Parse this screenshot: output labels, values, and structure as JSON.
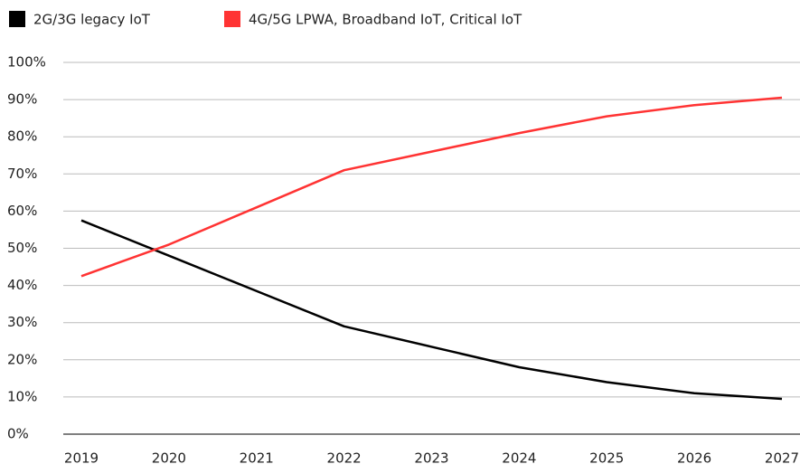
{
  "chart_data": {
    "type": "line",
    "categories": [
      "2019",
      "2020",
      "2021",
      "2022",
      "2023",
      "2024",
      "2025",
      "2026",
      "2027"
    ],
    "series": [
      {
        "name": "2G/3G legacy IoT",
        "color": "#000000",
        "values": [
          57.5,
          48,
          38.5,
          29,
          23.5,
          18,
          14,
          11,
          9.5
        ]
      },
      {
        "name": "4G/5G LPWA, Broadband IoT, Critical IoT",
        "color": "#ff3333",
        "values": [
          42.5,
          51,
          61,
          71,
          76,
          81,
          85.5,
          88.5,
          90.5
        ]
      }
    ],
    "ylim": [
      0,
      100
    ],
    "yticks": [
      {
        "value": 0,
        "label": "0%"
      },
      {
        "value": 10,
        "label": "10%"
      },
      {
        "value": 20,
        "label": "20%"
      },
      {
        "value": 30,
        "label": "30%"
      },
      {
        "value": 40,
        "label": "40%"
      },
      {
        "value": 50,
        "label": "50%"
      },
      {
        "value": 60,
        "label": "60%"
      },
      {
        "value": 70,
        "label": "70%"
      },
      {
        "value": 80,
        "label": "80%"
      },
      {
        "value": 90,
        "label": "90%"
      },
      {
        "value": 100,
        "label": "100%"
      }
    ],
    "grid": true,
    "legend": "top"
  }
}
